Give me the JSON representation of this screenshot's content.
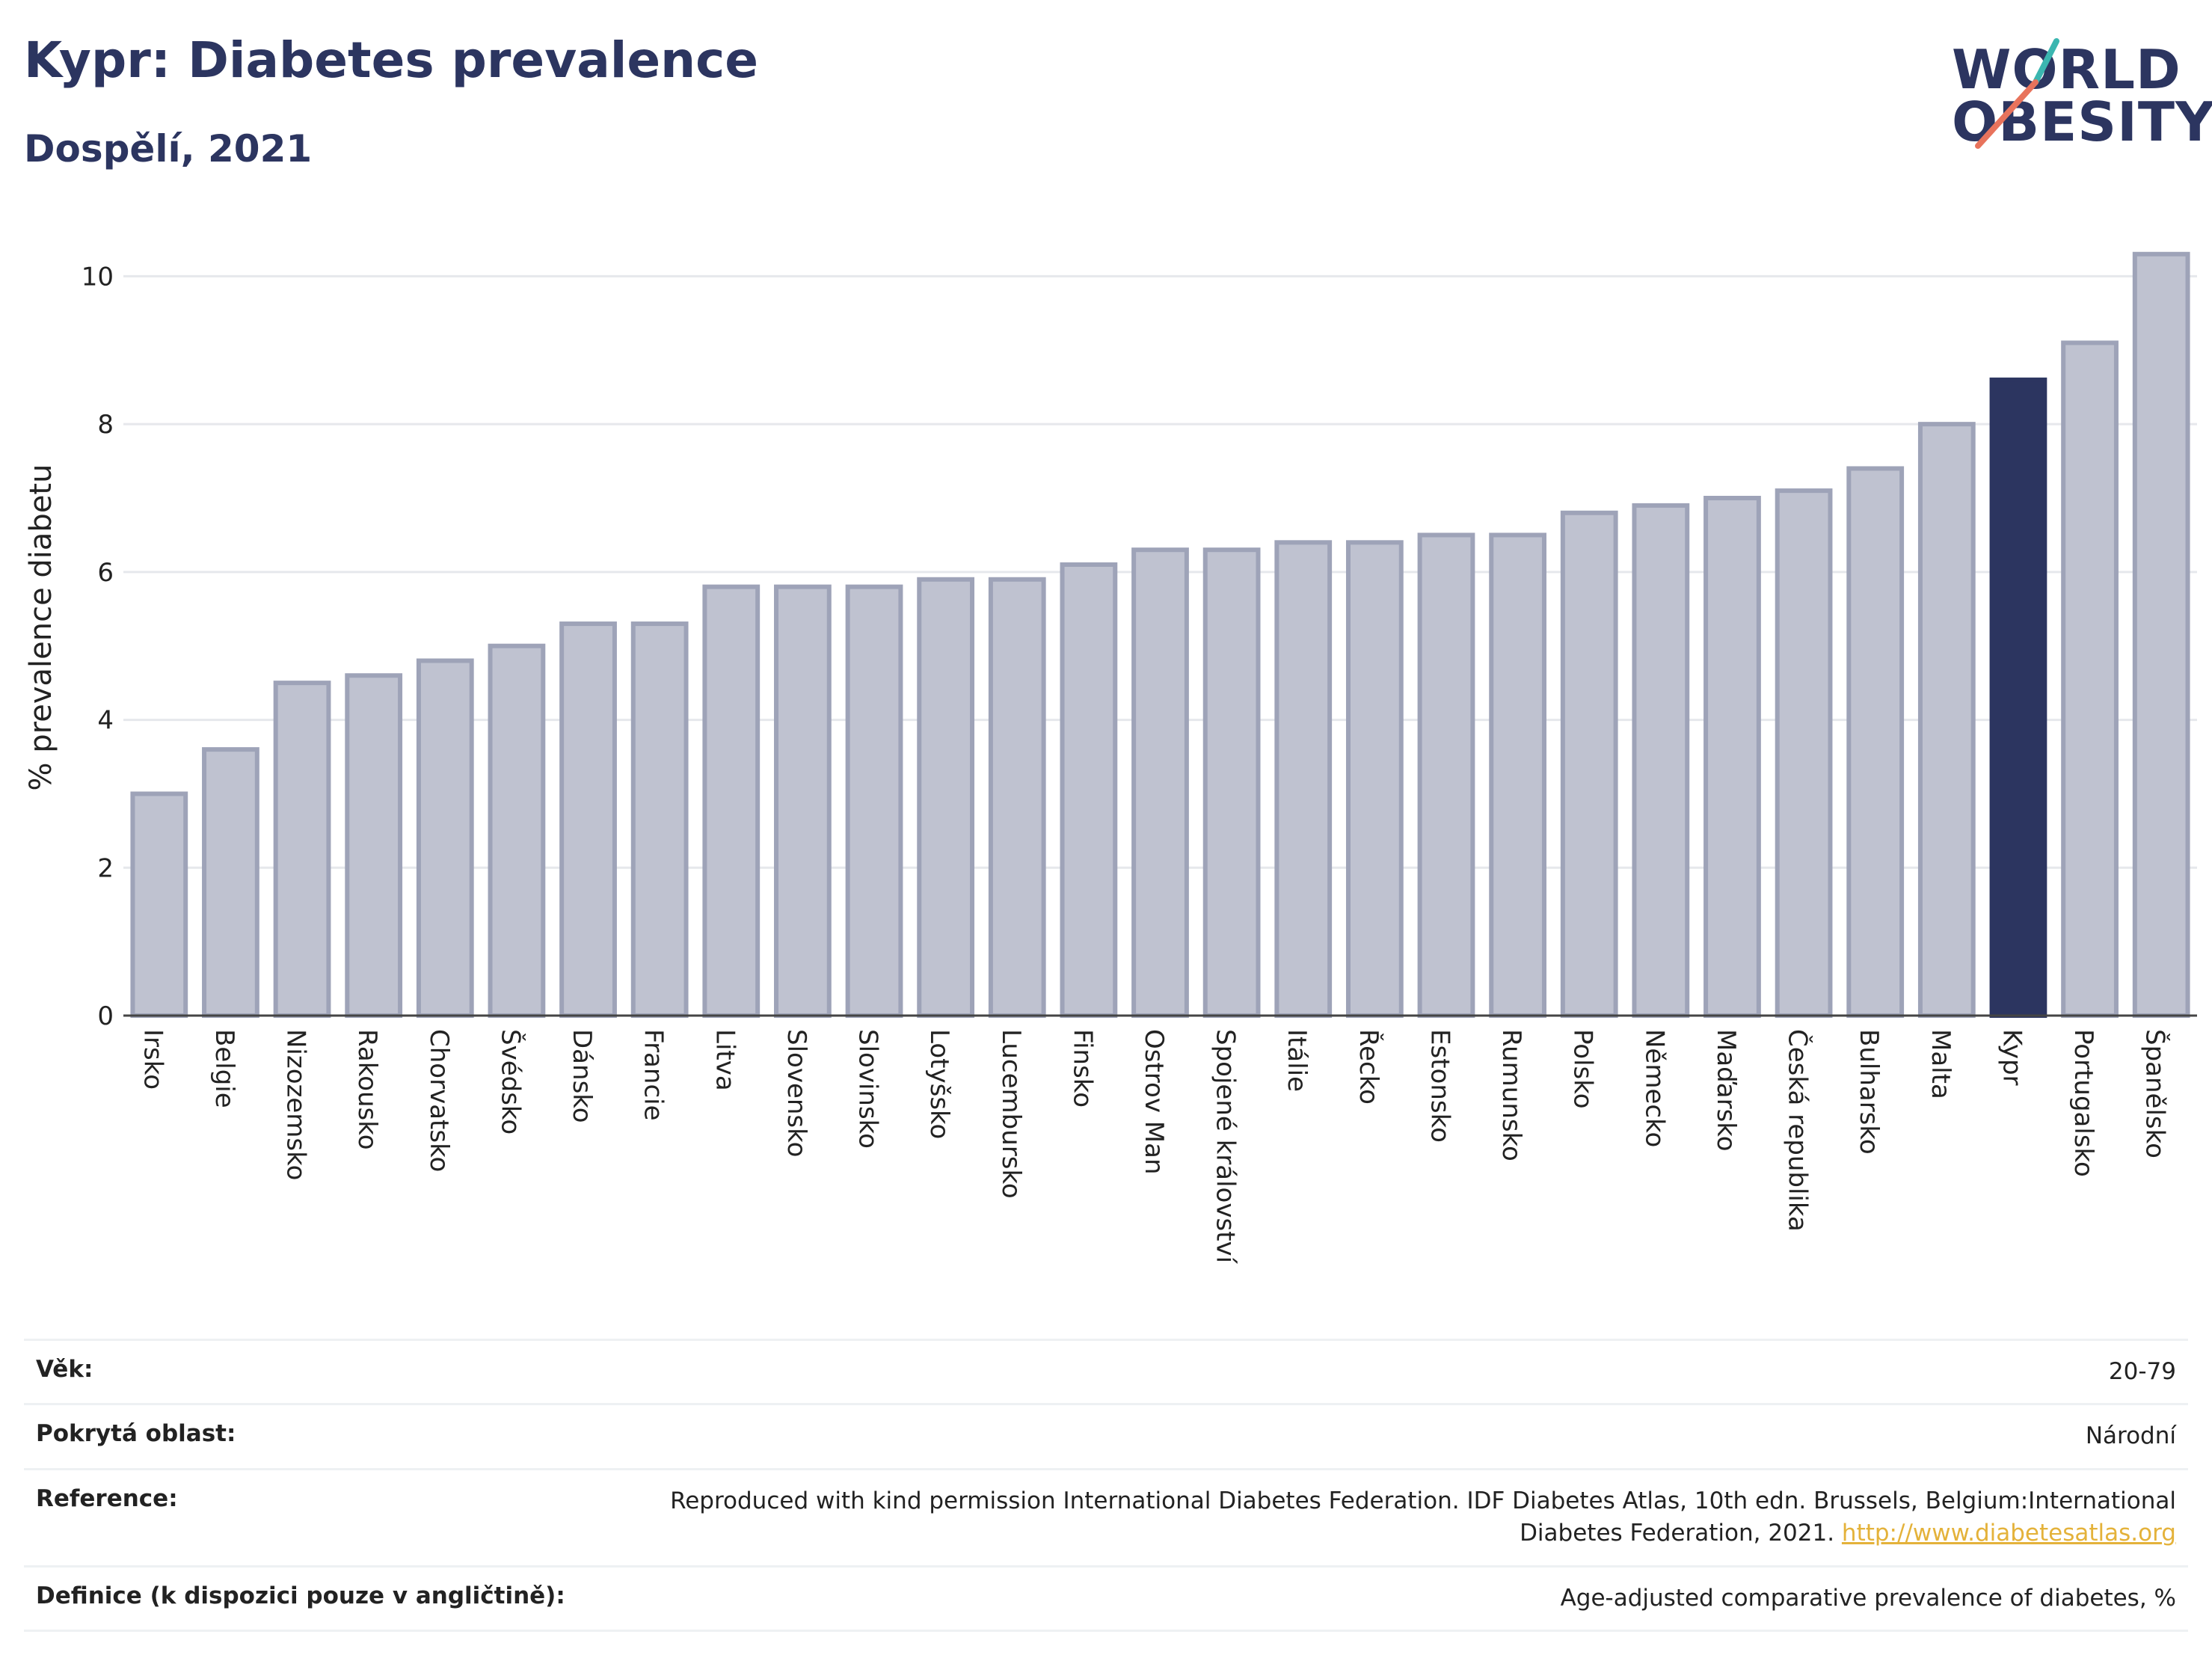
{
  "header": {
    "title": "Kypr: Diabetes prevalence",
    "subtitle": "Dospělí, 2021",
    "logo_line1": "WORLD",
    "logo_line2": "OBESITY"
  },
  "colors": {
    "bar": "#bfc2d0",
    "bar_border": "#9ea3b8",
    "highlight": "#2c3560",
    "grid": "#e6e8ec",
    "axis": "#444444",
    "accent_teal": "#3bb6b0",
    "accent_coral": "#e8735c"
  },
  "chart_data": {
    "type": "bar",
    "ylabel": "% prevalence diabetu",
    "xlabel": "",
    "ylim": [
      0,
      10.5
    ],
    "yticks": [
      0,
      2,
      4,
      6,
      8,
      10
    ],
    "grid": true,
    "highlight": "Kypr",
    "categories": [
      "Irsko",
      "Belgie",
      "Nizozemsko",
      "Rakousko",
      "Chorvatsko",
      "Švédsko",
      "Dánsko",
      "Francie",
      "Litva",
      "Slovensko",
      "Slovinsko",
      "Lotyšsko",
      "Lucembursko",
      "Finsko",
      "Ostrov Man",
      "Spojené království",
      "Itálie",
      "Řecko",
      "Estonsko",
      "Rumunsko",
      "Polsko",
      "Německo",
      "Maďarsko",
      "Česká republika",
      "Bulharsko",
      "Malta",
      "Kypr",
      "Portugalsko",
      "Španělsko"
    ],
    "values": [
      3.0,
      3.6,
      4.5,
      4.6,
      4.8,
      5.0,
      5.3,
      5.3,
      5.8,
      5.8,
      5.8,
      5.9,
      5.9,
      6.1,
      6.3,
      6.3,
      6.4,
      6.4,
      6.5,
      6.5,
      6.8,
      6.9,
      7.0,
      7.1,
      7.4,
      8.0,
      8.6,
      9.1,
      10.3
    ]
  },
  "meta": {
    "age_label": "Věk:",
    "age_value": "20-79",
    "area_label": "Pokrytá oblast:",
    "area_value": "Národní",
    "reference_label": "Reference:",
    "reference_text": "Reproduced with kind permission International Diabetes Federation.  IDF Diabetes Atlas, 10th edn. Brussels, Belgium:International Diabetes Federation, 2021. ",
    "reference_link": "http://www.diabetesatlas.org",
    "definition_label": "Definice (k dispozici pouze v angličtině):",
    "definition_value": "Age-adjusted comparative prevalence of diabetes, %"
  }
}
